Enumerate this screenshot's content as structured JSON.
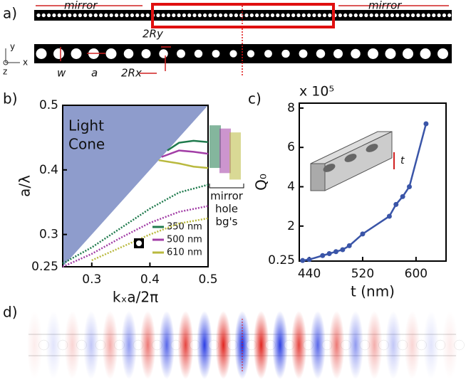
{
  "panel_labels": [
    "a)",
    "b)",
    "c)",
    "d)"
  ],
  "diagram": {
    "mirror_left": "mirror",
    "mirror_right": "mirror",
    "ry_label": "2Ry",
    "rx_label": "2Rx",
    "w_label": "w",
    "a_label": "a",
    "axis_y": "y",
    "axis_x": "x",
    "axis_z": "z"
  },
  "chart_data": [
    {
      "type": "line",
      "xlabel": "kₓa/2π",
      "ylabel": "a/λ",
      "xlim": [
        0.25,
        0.5
      ],
      "ylim": [
        0.25,
        0.5
      ],
      "xticks": [
        0.3,
        0.4,
        0.5
      ],
      "yticks": [
        0.25,
        0.3,
        0.4,
        0.5
      ],
      "light_cone": [
        "Light",
        "Cone"
      ],
      "light_cone_color": "#8e9ccc",
      "mirror_label": [
        "mirror",
        "hole",
        "bg's"
      ],
      "mirror_x": [
        0.25,
        0.3,
        0.35,
        0.4,
        0.45,
        0.5
      ],
      "series": [
        {
          "name": "350 nm",
          "color": "#1f7a4d",
          "x": [
            0.43,
            0.45,
            0.475,
            0.5
          ],
          "values": [
            0.43,
            0.442,
            0.445,
            0.443
          ],
          "mirror_values": [
            0.255,
            0.28,
            0.31,
            0.34,
            0.365,
            0.377
          ],
          "band": [
            0.403,
            0.469
          ]
        },
        {
          "name": "500 nm",
          "color": "#a23ea6",
          "x": [
            0.42,
            0.45,
            0.475,
            0.5
          ],
          "values": [
            0.42,
            0.43,
            0.428,
            0.425
          ],
          "mirror_values": [
            0.25,
            0.27,
            0.295,
            0.318,
            0.335,
            0.344
          ],
          "band": [
            0.395,
            0.464
          ]
        },
        {
          "name": "610 nm",
          "color": "#b9b93e",
          "x": [
            0.415,
            0.45,
            0.475,
            0.5
          ],
          "values": [
            0.415,
            0.41,
            0.405,
            0.403
          ],
          "mirror_values": [
            null,
            0.26,
            0.28,
            0.3,
            0.317,
            0.325
          ],
          "band": [
            0.385,
            0.458
          ]
        }
      ]
    },
    {
      "type": "line",
      "xlabel": "t (nm)",
      "ylabel": "Q₀",
      "multiplier": "x 10⁵",
      "inset_label": "t",
      "xlim": [
        425,
        645
      ],
      "ylim": [
        0.22,
        8.25
      ],
      "xticks": [
        440,
        520,
        600
      ],
      "yticks": [
        0.25,
        2,
        4,
        6,
        8
      ],
      "color": "#3a55a8",
      "x": [
        430,
        440,
        460,
        470,
        480,
        490,
        500,
        520,
        560,
        570,
        580,
        590,
        615
      ],
      "values": [
        0.25,
        0.3,
        0.5,
        0.6,
        0.7,
        0.8,
        1.0,
        1.6,
        2.5,
        3.1,
        3.5,
        4.0,
        7.2
      ]
    }
  ]
}
